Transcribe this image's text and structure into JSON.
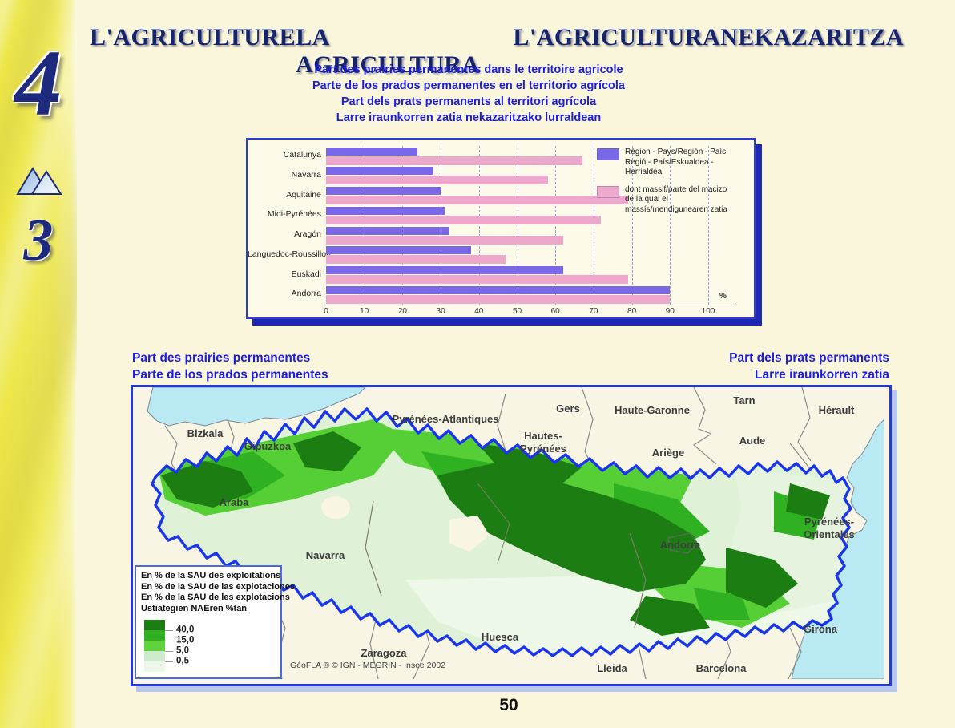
{
  "page": {
    "number": "50"
  },
  "sidebar": {
    "chapter_number": "4",
    "section_number": "3"
  },
  "header": {
    "titles": [
      "L'AGRICULTURE",
      "LA AGRICULTURA",
      "L'AGRICULTURA",
      "NEKAZARITZA"
    ],
    "subtitles": [
      "Part des prairies permanentes dans le territoire agricole",
      "Parte de los prados permanentes en el territorio agrícola",
      "Part dels prats permanents al territori agrícola",
      "Larre iraunkorren zatia nekazaritzako lurraldean"
    ]
  },
  "chart_data": {
    "type": "bar",
    "orientation": "horizontal",
    "categories": [
      "Catalunya",
      "Navarra",
      "Aquitaine",
      "Midi-Pyrénées",
      "Aragón",
      "Languedoc-Roussillon",
      "Euskadi",
      "Andorra"
    ],
    "series": [
      {
        "name": "Région - Pays/Región - País / Regió - País/Eskualdea - Herrialdea",
        "color": "#7b68e8",
        "values": [
          24,
          28,
          30,
          31,
          32,
          38,
          62,
          90
        ]
      },
      {
        "name": "dont massif/parte del macizo / de la qual el massís/mendigunearen zatia",
        "color": "#eda9cb",
        "values": [
          67,
          58,
          79,
          72,
          62,
          47,
          79,
          90
        ]
      }
    ],
    "legend": [
      [
        "Région - Pays/Región - País",
        "Regió - País/Eskualdea - Herrialdea"
      ],
      [
        "dont massif/parte del macizo",
        "de la qual el massís/mendigunearen zatia"
      ]
    ],
    "xlim": [
      0,
      100
    ],
    "xticks": [
      0,
      10,
      20,
      30,
      40,
      50,
      60,
      70,
      80,
      90,
      100
    ],
    "unit_label": "%",
    "grid": "dashed-vertical",
    "legend_position": "top-right"
  },
  "map": {
    "title_left": [
      "Part des prairies permanentes",
      "Parte de los prados permanentes"
    ],
    "title_right": [
      "Part dels prats permanents",
      "Larre iraunkorren zatia"
    ],
    "labels": [
      "Bizkaia",
      "Gipuzkoa",
      "Araba",
      "Navarra",
      "Pyrénées-Atlantiques",
      "Hautes-",
      "Pyrénées",
      "Gers",
      "Haute-Garonne",
      "Tarn",
      "Hérault",
      "Aude",
      "Ariège",
      "Pyrénées-",
      "Orientales",
      "Andorra",
      "Huesca",
      "Zaragoza",
      "Lleida",
      "Barcelona",
      "Girona"
    ],
    "legend": {
      "lines": [
        "En % de la SAU des exploitations",
        "En % de la SAU de las explotaciones",
        "En % de la SAU de les explotacions",
        "Ustiategien NAEren %tan"
      ],
      "breaks": [
        "40,0",
        "15,0",
        "5,0",
        "0,5"
      ],
      "colors": [
        "#1c7e12",
        "#2fb122",
        "#5fd23c",
        "#cdeccb",
        "#eef8ea"
      ]
    },
    "attribution": "GéoFLA ® © IGN - MEGRIN - Insee 2002",
    "sea_color": "#b9e9f2",
    "massif_border_color": "#1a35ee"
  }
}
